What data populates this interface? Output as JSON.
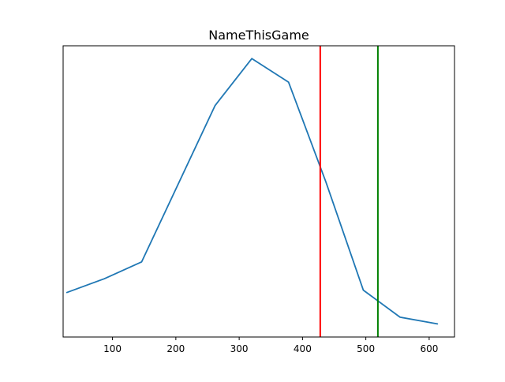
{
  "chart_data": {
    "type": "line",
    "title": "NameThisGame",
    "xlabel": "",
    "ylabel": "",
    "xlim": [
      22,
      640
    ],
    "ylim": [
      0,
      1
    ],
    "xticks": [
      100,
      200,
      300,
      400,
      500,
      600
    ],
    "xtick_labels": [
      "100",
      "200",
      "300",
      "400",
      "500",
      "600"
    ],
    "yticks_visible": false,
    "grid": false,
    "legend": "none",
    "series": [
      {
        "x": [
          28,
          87,
          146,
          262,
          320,
          378,
          437,
          496,
          554,
          613
        ],
        "y": [
          0.153,
          0.2,
          0.258,
          0.795,
          0.956,
          0.875,
          0.532,
          0.161,
          0.068,
          0.045
        ],
        "color": "#1f77b4"
      }
    ],
    "vlines": [
      {
        "x": 428,
        "color": "#ff0000"
      },
      {
        "x": 519,
        "color": "#008000"
      }
    ]
  }
}
